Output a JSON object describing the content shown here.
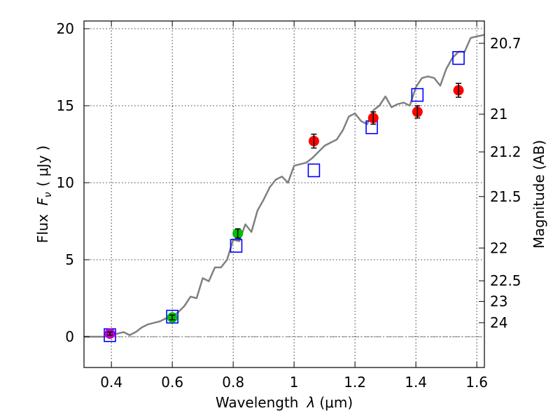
{
  "chart_data": {
    "type": "scatter",
    "xlabel_prefix": "Wavelength",
    "xlabel_symbol": "λ",
    "xlabel_units": "(μm)",
    "ylabel_prefix": "Flux",
    "ylabel_symbol": "F",
    "ylabel_sub": "ν",
    "ylabel_units": "( μJy )",
    "y2label": "Magnitude (AB)",
    "xlim": [
      0.31,
      1.625
    ],
    "ylim": [
      -2,
      20.5
    ],
    "grid": true,
    "x_ticks": [
      0.4,
      0.6,
      0.8,
      1.0,
      1.2,
      1.4,
      1.6
    ],
    "x_tick_labels": [
      "0.4",
      "0.6",
      "0.8",
      "1",
      "1.2",
      "1.4",
      "1.6"
    ],
    "y_ticks": [
      0,
      5,
      10,
      15,
      20
    ],
    "y_tick_labels": [
      "0",
      "5",
      "10",
      "15",
      "20"
    ],
    "y2_ticks": [
      {
        "flux": 19.05,
        "label": "20.7"
      },
      {
        "flux": 14.45,
        "label": "21"
      },
      {
        "flux": 12.0,
        "label": "21.2"
      },
      {
        "flux": 9.1,
        "label": "21.5"
      },
      {
        "flux": 5.76,
        "label": "22"
      },
      {
        "flux": 3.63,
        "label": "22.5"
      },
      {
        "flux": 2.29,
        "label": "23"
      },
      {
        "flux": 0.91,
        "label": "24"
      }
    ],
    "model_spectrum": {
      "name": "model SED",
      "color": "#808080",
      "x": [
        0.31,
        0.38,
        0.4,
        0.42,
        0.44,
        0.46,
        0.48,
        0.5,
        0.52,
        0.54,
        0.56,
        0.58,
        0.6,
        0.62,
        0.64,
        0.66,
        0.68,
        0.7,
        0.72,
        0.74,
        0.76,
        0.78,
        0.8,
        0.82,
        0.84,
        0.86,
        0.88,
        0.9,
        0.92,
        0.94,
        0.96,
        0.98,
        1.0,
        1.02,
        1.04,
        1.06,
        1.08,
        1.1,
        1.12,
        1.14,
        1.16,
        1.18,
        1.2,
        1.22,
        1.24,
        1.26,
        1.28,
        1.3,
        1.32,
        1.34,
        1.36,
        1.38,
        1.4,
        1.42,
        1.44,
        1.46,
        1.48,
        1.5,
        1.52,
        1.54,
        1.56,
        1.58,
        1.6,
        1.625
      ],
      "y": [
        0.0,
        0.0,
        0.15,
        0.2,
        0.3,
        0.1,
        0.3,
        0.6,
        0.8,
        0.9,
        1.0,
        1.2,
        1.3,
        1.6,
        2.0,
        2.6,
        2.5,
        3.8,
        3.6,
        4.5,
        4.5,
        5.0,
        6.3,
        6.2,
        7.3,
        6.8,
        8.2,
        8.9,
        9.7,
        10.2,
        10.4,
        10.0,
        11.1,
        11.2,
        11.3,
        11.6,
        12.0,
        12.4,
        12.6,
        12.8,
        13.4,
        14.3,
        14.5,
        14.0,
        13.8,
        14.7,
        15.0,
        15.6,
        14.9,
        15.1,
        15.2,
        15.0,
        16.2,
        16.8,
        16.9,
        16.8,
        16.3,
        17.4,
        18.1,
        18.5,
        18.5,
        19.4,
        19.5,
        19.6
      ]
    },
    "series": [
      {
        "name": "blue open squares",
        "color": "#0000ff",
        "marker": "square-open",
        "x": [
          0.395,
          0.6,
          0.81,
          1.065,
          1.255,
          1.405,
          1.54
        ],
        "y": [
          0.1,
          1.3,
          5.9,
          10.8,
          13.6,
          15.7,
          18.1
        ]
      },
      {
        "name": "purple point",
        "color": "#bf00bf",
        "marker": "circle",
        "x": [
          0.395
        ],
        "y": [
          0.2
        ],
        "yerr": [
          0.1
        ]
      },
      {
        "name": "green points",
        "color": "#00bf00",
        "marker": "circle",
        "x": [
          0.6,
          0.815
        ],
        "y": [
          1.25,
          6.7
        ],
        "yerr": [
          0.15,
          0.3
        ]
      },
      {
        "name": "red points",
        "color": "#ff0000",
        "marker": "circle",
        "x": [
          1.065,
          1.26,
          1.405,
          1.54
        ],
        "y": [
          12.7,
          14.2,
          14.6,
          16.0
        ],
        "yerr": [
          0.45,
          0.4,
          0.4,
          0.45
        ]
      }
    ]
  }
}
